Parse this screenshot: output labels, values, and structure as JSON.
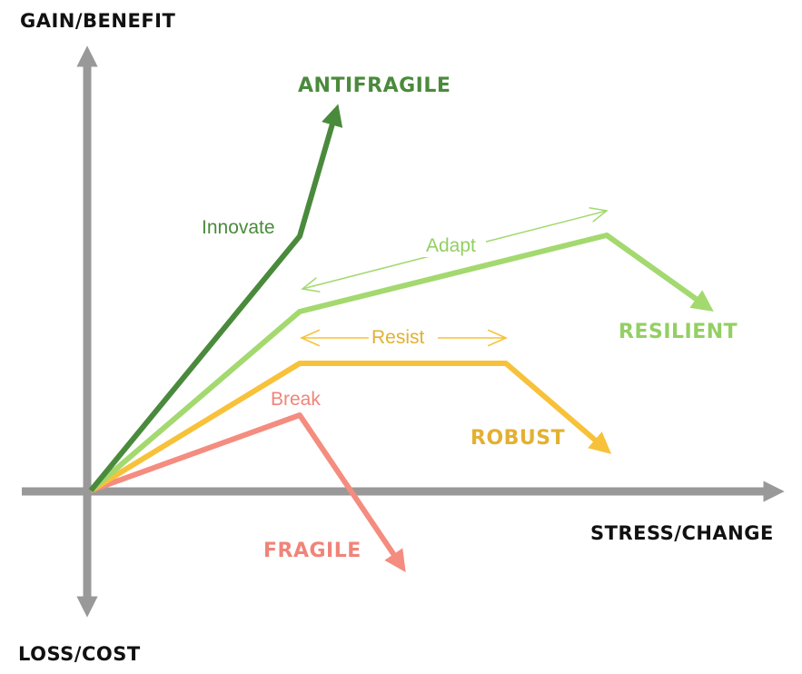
{
  "axes": {
    "y_positive": "GAIN/BENEFIT",
    "y_negative": "LOSS/COST",
    "x_positive": "STRESS/CHANGE"
  },
  "curves": {
    "antifragile": {
      "label": "ANTIFRAGILE",
      "phase": "Innovate",
      "color": "#4a8a3c"
    },
    "resilient": {
      "label": "RESILIENT",
      "phase": "Adapt",
      "color": "#a3d96f"
    },
    "robust": {
      "label": "ROBUST",
      "phase": "Resist",
      "color": "#f7c23a"
    },
    "fragile": {
      "label": "FRAGILE",
      "phase": "Break",
      "color": "#f48c7f"
    }
  },
  "colors": {
    "axis": "#999999",
    "antifragile_text": "#4a8a3c",
    "resilient_text": "#93cf63",
    "robust_text": "#e3b031",
    "fragile_text": "#f08479"
  }
}
